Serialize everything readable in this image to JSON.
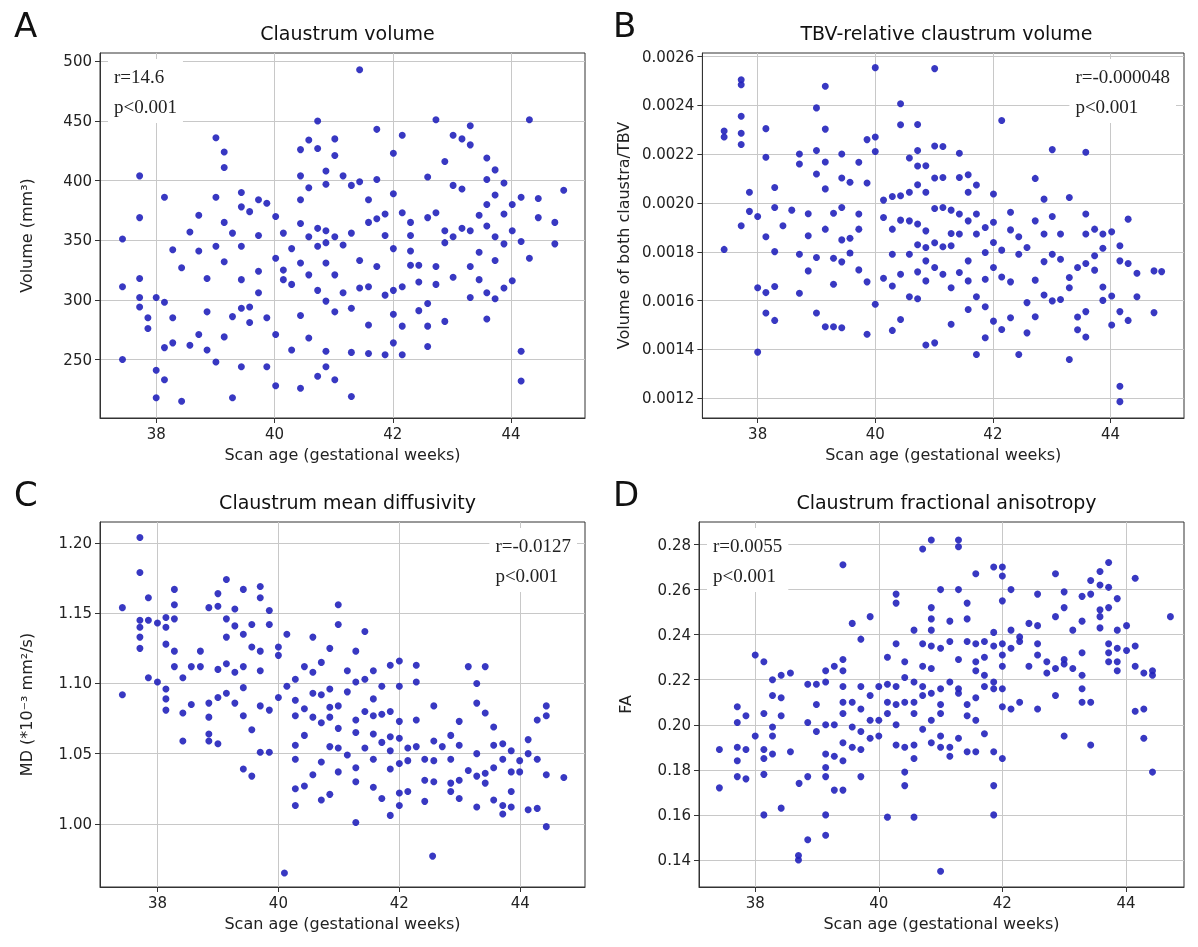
{
  "chart_data": [
    {
      "type": "scatter",
      "title": "Claustrum volume",
      "xlabel": "Scan age (gestational weeks)",
      "ylabel": "Volume (mm³)",
      "color": "#2222bb",
      "marker": "circle",
      "grid": true,
      "annotations": [
        "A",
        "r=14.6",
        "p<0.001"
      ],
      "xlim": [
        37.05,
        45.25
      ],
      "ylim": [
        201,
        507
      ],
      "xticks": [
        38,
        40,
        42,
        44
      ],
      "yticks": [
        250,
        300,
        350,
        400,
        450,
        500
      ],
      "x": [
        37.43,
        37.43,
        37.43,
        37.72,
        37.72,
        37.72,
        37.72,
        37.72,
        37.86,
        37.86,
        38.0,
        38.0,
        38.0,
        38.14,
        38.14,
        38.14,
        38.14,
        38.28,
        38.28,
        38.28,
        38.43,
        38.43,
        38.57,
        38.57,
        38.72,
        38.72,
        38.72,
        38.86,
        38.86,
        38.86,
        39.01,
        39.01,
        39.01,
        39.01,
        39.15,
        39.15,
        39.15,
        39.15,
        39.15,
        39.29,
        39.29,
        39.29,
        39.44,
        39.44,
        39.44,
        39.44,
        39.44,
        39.44,
        39.58,
        39.58,
        39.58,
        39.73,
        39.73,
        39.73,
        39.73,
        39.87,
        39.87,
        39.87,
        40.02,
        40.02,
        40.02,
        40.02,
        40.15,
        40.15,
        40.15,
        40.29,
        40.29,
        40.29,
        40.44,
        40.44,
        40.44,
        40.44,
        40.44,
        40.44,
        40.44,
        40.58,
        40.58,
        40.58,
        40.58,
        40.58,
        40.73,
        40.73,
        40.73,
        40.73,
        40.73,
        40.73,
        40.87,
        40.87,
        40.87,
        40.87,
        40.87,
        40.87,
        40.87,
        40.87,
        41.02,
        41.02,
        41.02,
        41.02,
        41.02,
        41.02,
        41.16,
        41.16,
        41.16,
        41.3,
        41.3,
        41.3,
        41.3,
        41.3,
        41.44,
        41.44,
        41.44,
        41.44,
        41.59,
        41.59,
        41.59,
        41.59,
        41.59,
        41.73,
        41.73,
        41.73,
        41.73,
        41.87,
        41.87,
        41.87,
        41.87,
        42.01,
        42.01,
        42.01,
        42.01,
        42.01,
        42.01,
        42.16,
        42.16,
        42.16,
        42.16,
        42.16,
        42.3,
        42.3,
        42.3,
        42.3,
        42.44,
        42.44,
        42.44,
        42.59,
        42.59,
        42.59,
        42.59,
        42.59,
        42.73,
        42.73,
        42.73,
        42.73,
        42.88,
        42.88,
        42.88,
        42.88,
        43.02,
        43.02,
        43.02,
        43.02,
        43.17,
        43.17,
        43.17,
        43.31,
        43.31,
        43.31,
        43.31,
        43.31,
        43.46,
        43.46,
        43.46,
        43.59,
        43.59,
        43.59,
        43.59,
        43.59,
        43.59,
        43.73,
        43.73,
        43.73,
        43.73,
        43.73,
        43.88,
        43.88,
        43.88,
        43.88,
        44.02,
        44.02,
        44.02,
        44.17,
        44.17,
        44.17,
        44.17,
        44.31,
        44.31,
        44.46,
        44.46,
        44.74,
        44.74,
        44.89
      ],
      "values": [
        351,
        311,
        250,
        404,
        369,
        318,
        302,
        294,
        285,
        276,
        302,
        241,
        218,
        386,
        298,
        260,
        233,
        342,
        285,
        264,
        327,
        215,
        357,
        262,
        371,
        341,
        271,
        318,
        290,
        258,
        436,
        386,
        345,
        248,
        424,
        411,
        365,
        332,
        269,
        356,
        286,
        218,
        390,
        378,
        345,
        317,
        293,
        244,
        374,
        294,
        281,
        384,
        354,
        324,
        306,
        381,
        285,
        244,
        370,
        335,
        271,
        228,
        356,
        325,
        317,
        343,
        313,
        258,
        426,
        404,
        384,
        364,
        331,
        287,
        226,
        434,
        394,
        353,
        321,
        268,
        450,
        427,
        360,
        345,
        308,
        236,
        408,
        397,
        358,
        348,
        331,
        299,
        257,
        244,
        435,
        421,
        353,
        321,
        290,
        233,
        404,
        346,
        306,
        396,
        356,
        293,
        256,
        219,
        493,
        399,
        333,
        310,
        384,
        365,
        311,
        279,
        255,
        443,
        401,
        368,
        328,
        372,
        354,
        304,
        254,
        423,
        389,
        343,
        308,
        288,
        264,
        438,
        373,
        311,
        278,
        254,
        365,
        354,
        341,
        329,
        329,
        315,
        291,
        403,
        369,
        297,
        278,
        261,
        451,
        373,
        328,
        313,
        416,
        358,
        348,
        282,
        438,
        396,
        353,
        319,
        435,
        393,
        360,
        446,
        430,
        358,
        328,
        302,
        371,
        340,
        317,
        419,
        401,
        380,
        362,
        306,
        284,
        409,
        388,
        353,
        333,
        301,
        398,
        372,
        347,
        310,
        380,
        358,
        316,
        386,
        349,
        257,
        232,
        451,
        335,
        385,
        369,
        365,
        347,
        392
      ]
    },
    {
      "type": "scatter",
      "title": "TBV-relative claustrum volume",
      "xlabel": "Scan age (gestational weeks)",
      "ylabel": "Volume of both claustra/TBV",
      "color": "#2222bb",
      "marker": "circle",
      "grid": true,
      "annotations": [
        "B",
        "r=-0.000048",
        "p<0.001"
      ],
      "xlim": [
        37.06,
        45.25
      ],
      "ylim": [
        0.001119,
        0.002615
      ],
      "xticks": [
        38,
        40,
        42,
        44
      ],
      "yticks": [
        {
          "value": 0.0012,
          "label": "0.0012"
        },
        {
          "value": 0.0014,
          "label": "0.0014"
        },
        {
          "value": 0.0016,
          "label": "0.0016"
        },
        {
          "value": 0.0018,
          "label": "0.0018"
        },
        {
          "value": 0.002,
          "label": "0.0020"
        },
        {
          "value": 0.0022,
          "label": "0.0022"
        },
        {
          "value": 0.0024,
          "label": "0.0024"
        },
        {
          "value": 0.0026,
          "label": "0.0026"
        }
      ],
      "x": [
        37.43,
        37.43,
        37.43,
        37.72,
        37.72,
        37.72,
        37.72,
        37.72,
        37.72,
        37.86,
        37.86,
        38.0,
        38.0,
        38.0,
        38.14,
        38.14,
        38.14,
        38.14,
        38.14,
        38.29,
        38.29,
        38.29,
        38.29,
        38.29,
        38.43,
        38.58,
        38.71,
        38.71,
        38.71,
        38.71,
        38.86,
        38.86,
        38.86,
        39.0,
        39.0,
        39.0,
        39.0,
        39.0,
        39.15,
        39.15,
        39.15,
        39.15,
        39.15,
        39.15,
        39.29,
        39.29,
        39.29,
        39.29,
        39.43,
        39.43,
        39.43,
        39.43,
        39.43,
        39.43,
        39.57,
        39.57,
        39.57,
        39.72,
        39.72,
        39.72,
        39.72,
        39.86,
        39.86,
        39.86,
        39.86,
        40.0,
        40.0,
        40.0,
        40.0,
        40.14,
        40.14,
        40.14,
        40.29,
        40.29,
        40.29,
        40.29,
        40.29,
        40.43,
        40.43,
        40.43,
        40.43,
        40.43,
        40.43,
        40.58,
        40.58,
        40.58,
        40.58,
        40.58,
        40.72,
        40.72,
        40.72,
        40.72,
        40.72,
        40.72,
        40.72,
        40.72,
        40.86,
        40.86,
        40.86,
        40.86,
        40.86,
        40.86,
        40.86,
        41.01,
        41.01,
        41.01,
        41.01,
        41.01,
        41.01,
        41.01,
        41.15,
        41.15,
        41.15,
        41.15,
        41.15,
        41.29,
        41.29,
        41.29,
        41.29,
        41.29,
        41.43,
        41.43,
        41.43,
        41.43,
        41.43,
        41.58,
        41.58,
        41.58,
        41.58,
        41.58,
        41.58,
        41.72,
        41.72,
        41.72,
        41.72,
        41.72,
        41.87,
        41.87,
        41.87,
        41.87,
        41.87,
        42.01,
        42.01,
        42.01,
        42.01,
        42.01,
        42.15,
        42.15,
        42.15,
        42.15,
        42.3,
        42.3,
        42.3,
        42.3,
        42.44,
        42.44,
        42.44,
        42.58,
        42.58,
        42.58,
        42.72,
        42.72,
        42.72,
        42.72,
        42.87,
        42.87,
        42.87,
        42.87,
        43.01,
        43.01,
        43.01,
        43.01,
        43.15,
        43.15,
        43.15,
        43.3,
        43.3,
        43.3,
        43.3,
        43.44,
        43.44,
        43.44,
        43.58,
        43.58,
        43.58,
        43.58,
        43.58,
        43.58,
        43.73,
        43.73,
        43.73,
        43.87,
        43.87,
        43.87,
        43.87,
        44.02,
        44.02,
        44.02,
        44.16,
        44.16,
        44.16,
        44.16,
        44.16,
        44.3,
        44.3,
        44.3,
        44.45,
        44.45,
        44.74,
        44.74,
        44.87
      ],
      "values": [
        0.002295,
        0.002271,
        0.00181,
        0.002505,
        0.002485,
        0.002356,
        0.002286,
        0.00224,
        0.001907,
        0.002044,
        0.001966,
        0.001945,
        0.001653,
        0.001389,
        0.002305,
        0.002188,
        0.001862,
        0.001633,
        0.001549,
        0.002064,
        0.001982,
        0.001801,
        0.001658,
        0.001519,
        0.001907,
        0.001971,
        0.002201,
        0.00216,
        0.00179,
        0.00163,
        0.001956,
        0.001866,
        0.001722,
        0.00239,
        0.002215,
        0.002119,
        0.001777,
        0.001549,
        0.002479,
        0.002303,
        0.002168,
        0.002058,
        0.001893,
        0.001493,
        0.001958,
        0.001774,
        0.001667,
        0.001493,
        0.002201,
        0.002103,
        0.001982,
        0.001849,
        0.001759,
        0.001489,
        0.002085,
        0.001856,
        0.001795,
        0.002167,
        0.001955,
        0.001893,
        0.001726,
        0.00226,
        0.002082,
        0.001677,
        0.001462,
        0.002555,
        0.002271,
        0.002211,
        0.001585,
        0.002012,
        0.001941,
        0.001692,
        0.002027,
        0.001893,
        0.00179,
        0.00166,
        0.001478,
        0.002407,
        0.002321,
        0.00203,
        0.00193,
        0.001708,
        0.001523,
        0.002185,
        0.002044,
        0.001927,
        0.00179,
        0.001616,
        0.002322,
        0.002215,
        0.002152,
        0.002075,
        0.001914,
        0.001829,
        0.001718,
        0.001608,
        0.002153,
        0.002044,
        0.001886,
        0.001818,
        0.001763,
        0.001681,
        0.001418,
        0.002551,
        0.002234,
        0.002103,
        0.001978,
        0.001837,
        0.001736,
        0.001427,
        0.002232,
        0.002105,
        0.001982,
        0.001821,
        0.001708,
        0.001971,
        0.001875,
        0.001825,
        0.001653,
        0.001503,
        0.002204,
        0.002105,
        0.001955,
        0.001873,
        0.001715,
        0.002116,
        0.002044,
        0.001927,
        0.001763,
        0.001681,
        0.001564,
        0.002074,
        0.001955,
        0.001873,
        0.001616,
        0.001379,
        0.0019,
        0.001797,
        0.001688,
        0.001575,
        0.001448,
        0.002037,
        0.001921,
        0.001838,
        0.001736,
        0.001516,
        0.002338,
        0.001807,
        0.001697,
        0.001482,
        0.001962,
        0.00189,
        0.001677,
        0.00153,
        0.001862,
        0.00179,
        0.001379,
        0.001818,
        0.001592,
        0.001468,
        0.002101,
        0.001927,
        0.001684,
        0.001534,
        0.002016,
        0.001873,
        0.00176,
        0.001623,
        0.002219,
        0.001945,
        0.00179,
        0.001599,
        0.001873,
        0.00177,
        0.001605,
        0.002023,
        0.001695,
        0.001653,
        0.001359,
        0.001736,
        0.001533,
        0.001481,
        0.002208,
        0.001955,
        0.001873,
        0.001752,
        0.001555,
        0.001451,
        0.001893,
        0.001784,
        0.001725,
        0.001873,
        0.001815,
        0.001656,
        0.001601,
        0.001882,
        0.001619,
        0.0015,
        0.001825,
        0.001763,
        0.001555,
        0.001249,
        0.001186,
        0.001934,
        0.001752,
        0.001519,
        0.001712,
        0.001616,
        0.001722,
        0.001551,
        0.001719
      ]
    },
    {
      "type": "scatter",
      "title": "Claustrum mean diffusivity",
      "xlabel": "Scan age (gestational weeks)",
      "ylabel": "MD (*10⁻³ mm²/s)",
      "color": "#2222bb",
      "marker": "circle",
      "grid": true,
      "annotations": [
        "C",
        "r=-0.0127",
        "p<0.001"
      ],
      "xlim": [
        37.05,
        45.07
      ],
      "ylim": [
        0.955,
        1.215
      ],
      "xticks": [
        38,
        40,
        42,
        44
      ],
      "yticks": [
        {
          "value": 1,
          "label": "1.00"
        },
        {
          "value": 1.05,
          "label": "1.05"
        },
        {
          "value": 1.1,
          "label": "1.10"
        },
        {
          "value": 1.15,
          "label": "1.15"
        },
        {
          "value": 1.2,
          "label": "1.20"
        }
      ],
      "x": [
        37.42,
        37.42,
        37.71,
        37.71,
        37.71,
        37.71,
        37.71,
        37.71,
        37.85,
        37.85,
        37.85,
        38.0,
        38.0,
        38.14,
        38.14,
        38.14,
        38.14,
        38.14,
        38.14,
        38.28,
        38.28,
        38.28,
        38.28,
        38.28,
        38.42,
        38.42,
        38.42,
        38.56,
        38.56,
        38.71,
        38.71,
        38.85,
        38.85,
        38.85,
        38.85,
        38.85,
        39.0,
        39.0,
        39.0,
        39.0,
        39.0,
        39.14,
        39.14,
        39.14,
        39.14,
        39.14,
        39.28,
        39.28,
        39.28,
        39.28,
        39.42,
        39.42,
        39.42,
        39.42,
        39.42,
        39.42,
        39.56,
        39.56,
        39.56,
        39.56,
        39.7,
        39.7,
        39.7,
        39.7,
        39.7,
        39.7,
        39.85,
        39.85,
        39.85,
        39.85,
        40.0,
        40.0,
        40.0,
        40.1,
        40.14,
        40.14,
        40.28,
        40.28,
        40.28,
        40.28,
        40.28,
        40.28,
        40.28,
        40.43,
        40.43,
        40.43,
        40.43,
        40.57,
        40.57,
        40.57,
        40.57,
        40.57,
        40.71,
        40.71,
        40.71,
        40.71,
        40.71,
        40.85,
        40.85,
        40.85,
        40.85,
        40.85,
        40.85,
        40.99,
        40.99,
        40.99,
        40.99,
        40.99,
        40.99,
        41.14,
        41.14,
        41.14,
        41.28,
        41.28,
        41.28,
        41.28,
        41.28,
        41.28,
        41.28,
        41.43,
        41.43,
        41.43,
        41.43,
        41.57,
        41.57,
        41.57,
        41.57,
        41.57,
        41.57,
        41.71,
        41.71,
        41.71,
        41.71,
        41.85,
        41.85,
        41.85,
        41.85,
        41.85,
        41.85,
        42.0,
        42.0,
        42.0,
        42.0,
        42.0,
        42.0,
        42.0,
        42.14,
        42.14,
        42.14,
        42.28,
        42.28,
        42.28,
        42.28,
        42.42,
        42.42,
        42.42,
        42.55,
        42.57,
        42.57,
        42.57,
        42.57,
        42.71,
        42.85,
        42.85,
        42.85,
        42.85,
        42.99,
        42.99,
        42.99,
        42.99,
        43.14,
        43.14,
        43.28,
        43.28,
        43.28,
        43.28,
        43.28,
        43.42,
        43.42,
        43.42,
        43.42,
        43.56,
        43.56,
        43.56,
        43.56,
        43.71,
        43.71,
        43.71,
        43.71,
        43.85,
        43.85,
        43.85,
        43.85,
        43.99,
        43.99,
        44.13,
        44.13,
        44.13,
        44.28,
        44.28,
        44.28,
        44.43,
        44.43,
        44.43,
        44.43,
        44.72
      ],
      "values": [
        1.154,
        1.092,
        1.204,
        1.179,
        1.145,
        1.14,
        1.133,
        1.125,
        1.161,
        1.145,
        1.104,
        1.143,
        1.101,
        1.147,
        1.14,
        1.128,
        1.096,
        1.089,
        1.081,
        1.167,
        1.156,
        1.146,
        1.123,
        1.112,
        1.104,
        1.079,
        1.059,
        1.112,
        1.085,
        1.123,
        1.112,
        1.154,
        1.086,
        1.076,
        1.064,
        1.059,
        1.164,
        1.155,
        1.11,
        1.09,
        1.057,
        1.174,
        1.146,
        1.133,
        1.114,
        1.093,
        1.153,
        1.141,
        1.108,
        1.086,
        1.167,
        1.135,
        1.112,
        1.097,
        1.077,
        1.039,
        1.142,
        1.126,
        1.067,
        1.034,
        1.169,
        1.161,
        1.123,
        1.109,
        1.084,
        1.051,
        1.152,
        1.142,
        1.081,
        1.051,
        1.126,
        1.12,
        1.09,
        0.965,
        1.135,
        1.098,
        1.103,
        1.088,
        1.077,
        1.056,
        1.046,
        1.025,
        1.013,
        1.112,
        1.082,
        1.063,
        1.027,
        1.133,
        1.108,
        1.093,
        1.076,
        1.035,
        1.115,
        1.092,
        1.072,
        1.044,
        1.017,
        1.125,
        1.096,
        1.083,
        1.076,
        1.055,
        1.021,
        1.156,
        1.142,
        1.084,
        1.068,
        1.054,
        1.037,
        1.109,
        1.094,
        1.049,
        1.123,
        1.101,
        1.074,
        1.065,
        1.04,
        1.03,
        1.001,
        1.137,
        1.103,
        1.08,
        1.054,
        1.109,
        1.089,
        1.077,
        1.064,
        1.046,
        1.026,
        1.098,
        1.078,
        1.058,
        1.018,
        1.113,
        1.08,
        1.062,
        1.052,
        1.039,
        1.006,
        1.116,
        1.098,
        1.073,
        1.061,
        1.043,
        1.022,
        1.013,
        1.054,
        1.045,
        1.023,
        1.113,
        1.101,
        1.074,
        1.055,
        1.046,
        1.031,
        1.016,
        0.977,
        1.084,
        1.059,
        1.045,
        1.03,
        1.055,
        1.063,
        1.046,
        1.029,
        1.023,
        1.073,
        1.056,
        1.031,
        1.018,
        1.112,
        1.038,
        1.1,
        1.086,
        1.05,
        1.034,
        1.012,
        1.112,
        1.079,
        1.036,
        1.029,
        1.069,
        1.056,
        1.04,
        1.017,
        1.057,
        1.046,
        1.013,
        1.007,
        1.052,
        1.037,
        1.023,
        1.012,
        1.045,
        1.037,
        1.06,
        1.05,
        1.01,
        1.074,
        1.046,
        1.011,
        1.084,
        1.077,
        1.035,
        0.998,
        1.033
      ]
    },
    {
      "type": "scatter",
      "title": "Claustrum fractional anisotropy",
      "xlabel": "Scan age (gestational weeks)",
      "ylabel": "FA",
      "color": "#2222bb",
      "marker": "circle",
      "grid": true,
      "annotations": [
        "D",
        "r=0.0055",
        "p<0.001"
      ],
      "xlim": [
        37.09,
        44.94
      ],
      "ylim": [
        0.128,
        0.29
      ],
      "xticks": [
        38,
        40,
        42,
        44
      ],
      "yticks": [
        {
          "value": 0.14,
          "label": "0.14"
        },
        {
          "value": 0.16,
          "label": "0.16"
        },
        {
          "value": 0.18,
          "label": "0.18"
        },
        {
          "value": 0.2,
          "label": "0.20"
        },
        {
          "value": 0.22,
          "label": "0.22"
        },
        {
          "value": 0.24,
          "label": "0.24"
        },
        {
          "value": 0.26,
          "label": "0.26"
        },
        {
          "value": 0.28,
          "label": "0.28"
        }
      ],
      "x": [
        37.42,
        37.42,
        37.71,
        37.71,
        37.71,
        37.71,
        37.71,
        37.85,
        37.85,
        37.85,
        38.0,
        38.0,
        38.14,
        38.14,
        38.14,
        38.14,
        38.14,
        38.14,
        38.28,
        38.28,
        38.28,
        38.28,
        38.28,
        38.42,
        38.42,
        38.42,
        38.42,
        38.57,
        38.57,
        38.7,
        38.7,
        38.71,
        38.85,
        38.85,
        38.85,
        38.85,
        38.99,
        38.99,
        38.99,
        39.14,
        39.14,
        39.14,
        39.14,
        39.14,
        39.14,
        39.14,
        39.14,
        39.28,
        39.28,
        39.28,
        39.28,
        39.42,
        39.42,
        39.42,
        39.42,
        39.42,
        39.42,
        39.42,
        39.42,
        39.42,
        39.57,
        39.57,
        39.57,
        39.57,
        39.71,
        39.71,
        39.71,
        39.71,
        39.71,
        39.71,
        39.86,
        39.86,
        39.86,
        39.86,
        40.0,
        40.0,
        40.0,
        40.14,
        40.14,
        40.14,
        40.14,
        40.14,
        40.28,
        40.28,
        40.28,
        40.28,
        40.28,
        40.28,
        40.28,
        40.42,
        40.42,
        40.42,
        40.42,
        40.42,
        40.42,
        40.57,
        40.57,
        40.57,
        40.57,
        40.57,
        40.57,
        40.57,
        40.71,
        40.71,
        40.71,
        40.71,
        40.71,
        40.71,
        40.85,
        40.85,
        40.85,
        40.85,
        40.85,
        40.85,
        40.85,
        40.85,
        40.85,
        41.0,
        41.0,
        41.0,
        41.0,
        41.0,
        41.0,
        41.0,
        41.0,
        41.15,
        41.15,
        41.15,
        41.15,
        41.15,
        41.29,
        41.29,
        41.29,
        41.29,
        41.29,
        41.29,
        41.29,
        41.43,
        41.43,
        41.43,
        41.43,
        41.43,
        41.43,
        41.57,
        41.57,
        41.57,
        41.57,
        41.57,
        41.57,
        41.57,
        41.71,
        41.71,
        41.71,
        41.71,
        41.71,
        41.86,
        41.86,
        41.86,
        41.86,
        41.86,
        41.86,
        41.86,
        41.86,
        42.0,
        42.0,
        42.0,
        42.0,
        42.0,
        42.0,
        42.0,
        42.0,
        42.0,
        42.14,
        42.14,
        42.14,
        42.14,
        42.28,
        42.28,
        42.28,
        42.43,
        42.43,
        42.57,
        42.57,
        42.57,
        42.57,
        42.57,
        42.72,
        42.72,
        42.86,
        42.86,
        42.86,
        42.86,
        43.0,
        43.0,
        43.0,
        43.0,
        43.0,
        43.14,
        43.14,
        43.29,
        43.29,
        43.29,
        43.29,
        43.29,
        43.29,
        43.43,
        43.43,
        43.43,
        43.43,
        43.58,
        43.58,
        43.58,
        43.58,
        43.58,
        43.72,
        43.72,
        43.72,
        43.72,
        43.72,
        43.72,
        43.86,
        43.86,
        43.86,
        43.86,
        43.86,
        44.01,
        44.01,
        44.15,
        44.15,
        44.15,
        44.15,
        44.29,
        44.29,
        44.29,
        44.43,
        44.43,
        44.43,
        44.72
      ],
      "values": [
        0.189,
        0.172,
        0.208,
        0.201,
        0.19,
        0.184,
        0.177,
        0.204,
        0.189,
        0.176,
        0.231,
        0.195,
        0.228,
        0.205,
        0.189,
        0.185,
        0.178,
        0.16,
        0.22,
        0.213,
        0.199,
        0.195,
        0.187,
        0.222,
        0.212,
        0.204,
        0.163,
        0.223,
        0.188,
        0.142,
        0.14,
        0.174,
        0.218,
        0.201,
        0.177,
        0.149,
        0.218,
        0.209,
        0.197,
        0.224,
        0.219,
        0.2,
        0.187,
        0.181,
        0.177,
        0.16,
        0.151,
        0.226,
        0.2,
        0.186,
        0.171,
        0.271,
        0.229,
        0.224,
        0.217,
        0.21,
        0.205,
        0.192,
        0.184,
        0.171,
        0.245,
        0.21,
        0.199,
        0.19,
        0.238,
        0.217,
        0.207,
        0.197,
        0.189,
        0.177,
        0.248,
        0.213,
        0.202,
        0.194,
        0.217,
        0.202,
        0.195,
        0.23,
        0.218,
        0.21,
        0.205,
        0.159,
        0.258,
        0.254,
        0.236,
        0.217,
        0.209,
        0.2,
        0.191,
        0.228,
        0.221,
        0.21,
        0.19,
        0.179,
        0.173,
        0.242,
        0.219,
        0.21,
        0.205,
        0.191,
        0.185,
        0.159,
        0.278,
        0.236,
        0.226,
        0.217,
        0.213,
        0.198,
        0.282,
        0.252,
        0.247,
        0.242,
        0.235,
        0.225,
        0.214,
        0.202,
        0.192,
        0.26,
        0.234,
        0.216,
        0.209,
        0.205,
        0.195,
        0.19,
        0.135,
        0.246,
        0.237,
        0.219,
        0.19,
        0.186,
        0.282,
        0.279,
        0.26,
        0.229,
        0.216,
        0.214,
        0.194,
        0.254,
        0.247,
        0.237,
        0.209,
        0.204,
        0.188,
        0.267,
        0.236,
        0.228,
        0.224,
        0.212,
        0.202,
        0.188,
        0.237,
        0.23,
        0.222,
        0.217,
        0.196,
        0.27,
        0.241,
        0.235,
        0.219,
        0.216,
        0.188,
        0.173,
        0.16,
        0.27,
        0.266,
        0.255,
        0.236,
        0.231,
        0.226,
        0.216,
        0.208,
        0.185,
        0.26,
        0.242,
        0.234,
        0.207,
        0.239,
        0.237,
        0.21,
        0.245,
        0.226,
        0.258,
        0.244,
        0.236,
        0.231,
        0.207,
        0.228,
        0.223,
        0.267,
        0.248,
        0.225,
        0.213,
        0.259,
        0.252,
        0.229,
        0.227,
        0.195,
        0.242,
        0.225,
        0.257,
        0.246,
        0.232,
        0.222,
        0.216,
        0.21,
        0.264,
        0.258,
        0.21,
        0.191,
        0.268,
        0.262,
        0.251,
        0.248,
        0.243,
        0.272,
        0.261,
        0.252,
        0.236,
        0.232,
        0.228,
        0.256,
        0.242,
        0.234,
        0.228,
        0.224,
        0.244,
        0.233,
        0.265,
        0.235,
        0.226,
        0.206,
        0.223,
        0.207,
        0.194,
        0.224,
        0.222,
        0.179,
        0.248
      ]
    }
  ]
}
